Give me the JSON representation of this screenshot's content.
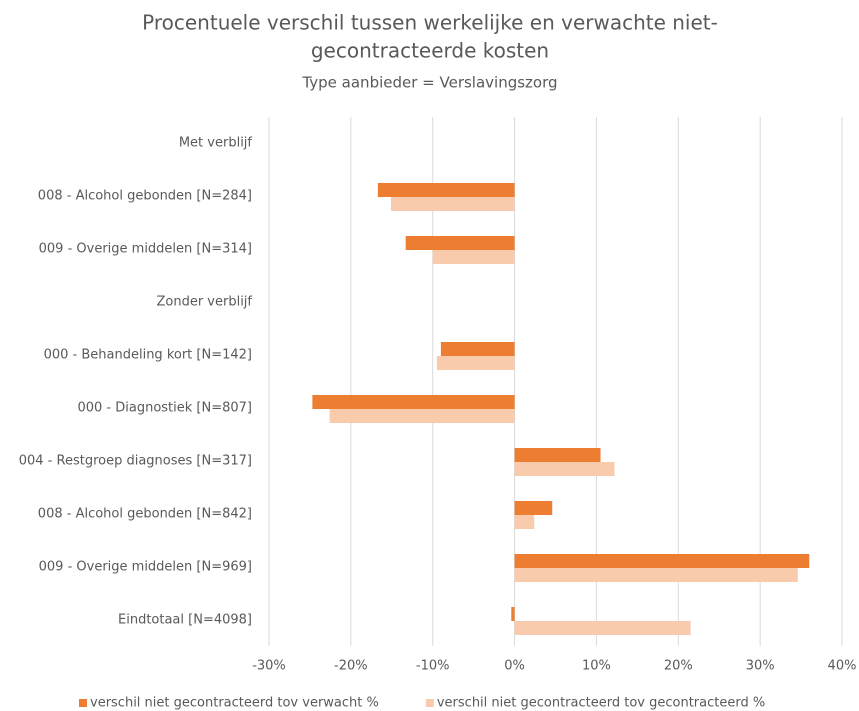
{
  "chart_data": {
    "type": "hbar",
    "title": [
      "Procentuele verschil tussen werkelijke en verwachte niet-",
      "gecontracteerde kosten"
    ],
    "subtitle": "Type aanbieder = Verslavingszorg",
    "categories": [
      "Met verblijf",
      "008 - Alcohol gebonden [N=284]",
      "009 - Overige middelen [N=314]",
      "Zonder verblijf",
      "000 - Behandeling kort [N=142]",
      "000 - Diagnostiek [N=807]",
      "004 - Restgroep diagnoses [N=317]",
      "008 - Alcohol gebonden [N=842]",
      "009 - Overige middelen [N=969]",
      "Eindtotaal [N=4098]"
    ],
    "series": [
      {
        "name": "verschil niet gecontracteerd tov verwacht %",
        "color": "#ed7d31",
        "values": [
          null,
          -16.7,
          -13.3,
          null,
          -9.0,
          -24.7,
          10.5,
          4.6,
          36.0,
          -0.4
        ]
      },
      {
        "name": "verschil niet gecontracteerd tov gecontracteerd %",
        "color": "#f8cbad",
        "values": [
          null,
          -15.1,
          -10.0,
          null,
          -9.5,
          -22.6,
          12.2,
          2.4,
          34.6,
          21.5
        ]
      }
    ],
    "xlim": [
      -30,
      40
    ],
    "xticks": [
      {
        "value": -30,
        "label": "-30%"
      },
      {
        "value": -20,
        "label": "-20%"
      },
      {
        "value": -10,
        "label": "-10%"
      },
      {
        "value": 0,
        "label": "0%"
      },
      {
        "value": 10,
        "label": "10%"
      },
      {
        "value": 20,
        "label": "20%"
      },
      {
        "value": 30,
        "label": "30%"
      },
      {
        "value": 40,
        "label": "40%"
      }
    ],
    "grid": true,
    "legend": "bottom"
  }
}
